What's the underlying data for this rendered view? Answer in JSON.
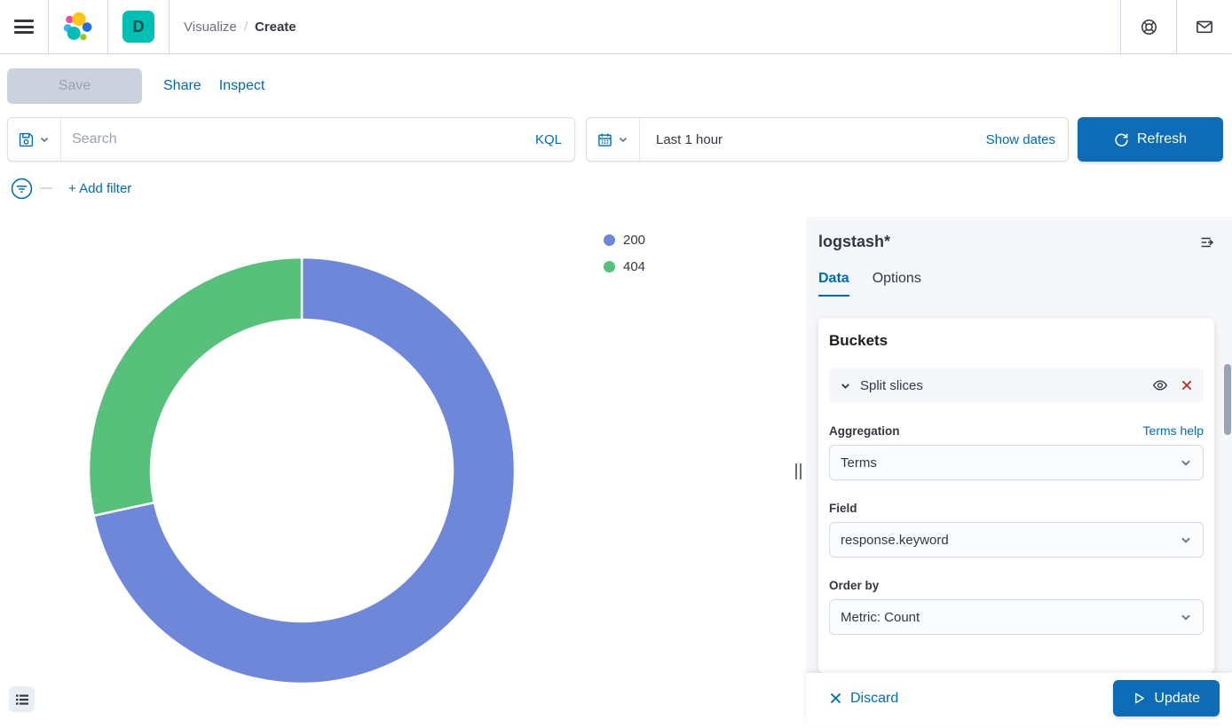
{
  "header": {
    "breadcrumb": {
      "section": "Visualize",
      "separator": "/",
      "current": "Create"
    },
    "space_badge": "D"
  },
  "toolbar": {
    "save_label": "Save",
    "share_label": "Share",
    "inspect_label": "Inspect"
  },
  "query_bar": {
    "search_placeholder": "Search",
    "language_label": "KQL",
    "time_range": "Last 1 hour",
    "show_dates_label": "Show dates",
    "refresh_label": "Refresh"
  },
  "filter_bar": {
    "add_filter_label": "+ Add filter"
  },
  "chart_data": {
    "type": "pie",
    "donut": true,
    "title": "",
    "legend_position": "right",
    "start_angle_deg": 0,
    "slices": [
      {
        "label": "200",
        "color": "#6F87D8",
        "percent": 71.6
      },
      {
        "label": "404",
        "color": "#57C17B",
        "percent": 28.4
      }
    ]
  },
  "editor": {
    "index_pattern": "logstash*",
    "tabs": [
      {
        "label": "Data",
        "active": true
      },
      {
        "label": "Options",
        "active": false
      }
    ],
    "buckets": {
      "title": "Buckets",
      "accordion_label": "Split slices",
      "aggregation": {
        "label": "Aggregation",
        "value": "Terms",
        "help_link": "Terms help"
      },
      "field": {
        "label": "Field",
        "value": "response.keyword"
      },
      "order_by": {
        "label": "Order by",
        "value": "Metric: Count"
      }
    },
    "actions": {
      "discard_label": "Discard",
      "update_label": "Update"
    }
  },
  "colors": {
    "link_blue": "#006BB4",
    "button_blue": "#0D6CB5",
    "badge_teal": "#00BFB3",
    "danger_red": "#BD271E",
    "slice_200": "#6F87D8",
    "slice_404": "#57C17B"
  }
}
